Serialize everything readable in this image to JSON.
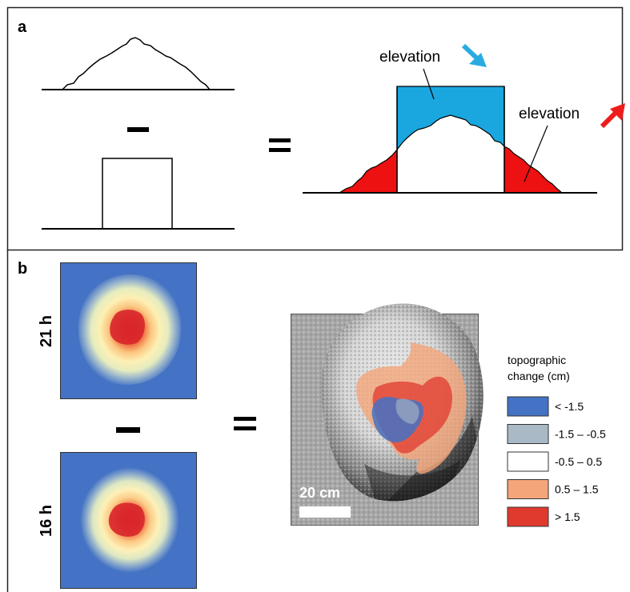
{
  "panel_a": {
    "letter": "a",
    "label_top": "elevation",
    "label_right": "elevation"
  },
  "panel_b": {
    "letter": "b",
    "time_top": "21 h",
    "time_bottom": "16 h",
    "scale_label": "20 cm",
    "legend": {
      "title_line1": "topographic",
      "title_line2": "change (cm)",
      "items": [
        {
          "label": "< -1.5",
          "color": "#4472c4"
        },
        {
          "label": "-1.5 – -0.5",
          "color": "#a9b9c6"
        },
        {
          "label": "-0.5 – 0.5",
          "color": "#ffffff"
        },
        {
          "label": "0.5 – 1.5",
          "color": "#f4a57a"
        },
        {
          "label": "> 1.5",
          "color": "#e03a2e"
        }
      ]
    }
  },
  "colors": {
    "loss_blue": "#1aa7e0",
    "gain_red": "#ee1111",
    "arrow_blue": "#29abe2",
    "arrow_red": "#ee1c1c",
    "heatmap_background": "#4472c4"
  }
}
